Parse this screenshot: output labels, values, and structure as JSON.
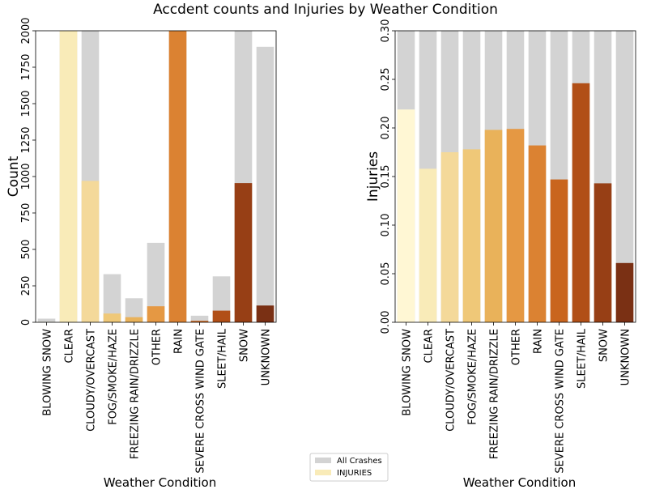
{
  "title": "Accdent counts and Injuries by Weather Condition",
  "colors": {
    "all_crashes": "#d3d3d3",
    "palette": [
      "#fff7d4",
      "#f9ebb8",
      "#f4d99a",
      "#efc878",
      "#e9b25a",
      "#e59843",
      "#db8232",
      "#c9651e",
      "#b14f17",
      "#973f15",
      "#7a3014"
    ]
  },
  "legend": {
    "items": [
      {
        "label": "All Crashes",
        "color": "#d3d3d3"
      },
      {
        "label": "INJURIES",
        "color": "#f9ebb8"
      }
    ]
  },
  "chart_data": [
    {
      "type": "bar",
      "categories": [
        "BLOWING SNOW",
        "CLEAR",
        "CLOUDY/OVERCAST",
        "FOG/SMOKE/HAZE",
        "FREEZING RAIN/DRIZZLE",
        "OTHER",
        "RAIN",
        "SEVERE CROSS WIND GATE",
        "SLEET/HAIL",
        "SNOW",
        "UNKNOWN"
      ],
      "series": [
        {
          "name": "All Crashes",
          "values": [
            25,
            2000,
            2000,
            330,
            165,
            545,
            2000,
            45,
            315,
            2000,
            1890
          ]
        },
        {
          "name": "INJURIES",
          "values": [
            3,
            2000,
            970,
            60,
            35,
            110,
            2000,
            10,
            80,
            955,
            115
          ]
        }
      ],
      "xlabel": "Weather Condition",
      "ylabel": "Count",
      "ylim": [
        0,
        2000
      ],
      "yticks": [
        0,
        250,
        500,
        750,
        1000,
        1250,
        1500,
        1750,
        2000
      ],
      "ytick_labels": [
        "0",
        "250",
        "500",
        "750",
        "1000",
        "1250",
        "1500",
        "1750",
        "2000"
      ],
      "grid": false
    },
    {
      "type": "bar",
      "categories": [
        "BLOWING SNOW",
        "CLEAR",
        "CLOUDY/OVERCAST",
        "FOG/SMOKE/HAZE",
        "FREEZING RAIN/DRIZZLE",
        "OTHER",
        "RAIN",
        "SEVERE CROSS WIND GATE",
        "SLEET/HAIL",
        "SNOW",
        "UNKNOWN"
      ],
      "series": [
        {
          "name": "All Crashes",
          "values": [
            0.3,
            0.3,
            0.3,
            0.3,
            0.3,
            0.3,
            0.3,
            0.3,
            0.3,
            0.3,
            0.3
          ]
        },
        {
          "name": "INJURIES",
          "values": [
            0.219,
            0.158,
            0.175,
            0.178,
            0.198,
            0.199,
            0.182,
            0.147,
            0.246,
            0.143,
            0.061
          ]
        }
      ],
      "xlabel": "Weather Condition",
      "ylabel": "Injuries",
      "ylim": [
        0,
        0.3
      ],
      "yticks": [
        0,
        0.05,
        0.1,
        0.15,
        0.2,
        0.25,
        0.3
      ],
      "ytick_labels": [
        "0.00",
        "0.05",
        "0.10",
        "0.15",
        "0.20",
        "0.25",
        "0.30"
      ],
      "grid": false
    }
  ]
}
